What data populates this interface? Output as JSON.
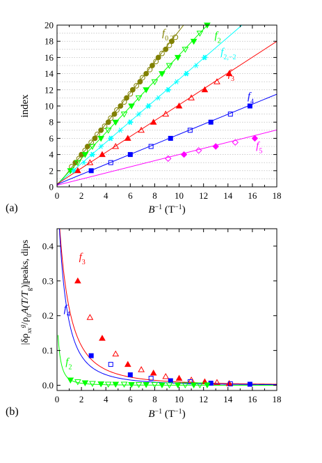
{
  "chart_data": [
    {
      "panel_label": "(a)",
      "type": "scatter",
      "ylabel": "index",
      "xlabel": {
        "main": "B",
        "sup": "−1",
        "unit_open": " (T",
        "unit_sup": "−1",
        "unit_close": ")"
      },
      "xlim": [
        0,
        18
      ],
      "ylim": [
        0,
        20
      ],
      "xticks": [
        0,
        2,
        4,
        6,
        8,
        10,
        12,
        14,
        16,
        18
      ],
      "yticks": [
        0,
        2,
        4,
        6,
        8,
        10,
        12,
        14,
        16,
        18,
        20
      ],
      "grid": "horizontal dotted",
      "series": [
        {
          "name": "f0,2",
          "label_main": "f",
          "label_sub": "0,2",
          "color": "#808000",
          "fit": {
            "slope": 1.92,
            "intercept": 0.1
          },
          "filled": [
            [
              1.5,
              3
            ],
            [
              2.0,
              4
            ],
            [
              2.5,
              5
            ],
            [
              3.1,
              6
            ],
            [
              3.6,
              7
            ],
            [
              4.2,
              8
            ],
            [
              4.7,
              9
            ],
            [
              5.2,
              10
            ],
            [
              5.7,
              11
            ],
            [
              6.2,
              12
            ],
            [
              6.8,
              13
            ],
            [
              7.3,
              14
            ],
            [
              7.8,
              15
            ],
            [
              8.3,
              16
            ],
            [
              8.9,
              17
            ],
            [
              9.4,
              18
            ]
          ],
          "open": [
            [
              1.2,
              2.5
            ],
            [
              1.8,
              3.5
            ],
            [
              2.3,
              4.5
            ],
            [
              2.8,
              5.5
            ],
            [
              3.3,
              6.5
            ],
            [
              3.9,
              7.5
            ],
            [
              4.4,
              8.5
            ],
            [
              4.9,
              9.5
            ],
            [
              5.5,
              10.5
            ],
            [
              6.0,
              11.5
            ],
            [
              6.5,
              12.5
            ],
            [
              7.0,
              13.5
            ],
            [
              7.6,
              14.5
            ],
            [
              8.1,
              15.5
            ],
            [
              8.6,
              16.5
            ],
            [
              9.2,
              17.5
            ],
            [
              9.7,
              18.5
            ]
          ],
          "marker": "circle"
        },
        {
          "name": "f2",
          "label_main": "f",
          "label_sub": "2",
          "color": "#00ff00",
          "fit": {
            "slope": 1.6,
            "intercept": 0.3
          },
          "filled": [
            [
              1.1,
              2
            ],
            [
              2.3,
              4
            ],
            [
              3.6,
              6
            ],
            [
              4.8,
              8
            ],
            [
              6.1,
              10
            ],
            [
              7.3,
              12
            ],
            [
              8.6,
              14
            ],
            [
              9.9,
              16
            ],
            [
              11.2,
              18
            ],
            [
              12.3,
              20
            ]
          ],
          "open": [
            [
              1.7,
              3
            ],
            [
              2.9,
              5
            ],
            [
              4.2,
              7
            ],
            [
              5.5,
              9
            ],
            [
              6.7,
              11
            ],
            [
              8.0,
              13
            ],
            [
              9.2,
              15
            ],
            [
              10.5,
              17
            ],
            [
              11.7,
              19
            ]
          ],
          "marker": "triangle-down"
        },
        {
          "name": "f2,-2",
          "label_main": "f",
          "label_sub": "2,−2",
          "color": "#00ffff",
          "fit": {
            "slope": 1.3,
            "intercept": 0.3
          },
          "filled": [
            [
              1.4,
              2
            ],
            [
              2.9,
              4
            ],
            [
              4.4,
              6
            ],
            [
              6.0,
              8
            ],
            [
              7.5,
              10
            ],
            [
              9.1,
              12
            ],
            [
              10.6,
              14
            ],
            [
              12.1,
              16
            ]
          ],
          "open": [
            [
              2.2,
              3
            ],
            [
              3.6,
              5
            ],
            [
              5.2,
              7
            ],
            [
              6.7,
              9
            ],
            [
              8.3,
              11
            ],
            [
              9.8,
              13
            ],
            [
              11.4,
              15
            ]
          ],
          "marker": "asterisk"
        },
        {
          "name": "f3",
          "label_main": "f",
          "label_sub": "3",
          "color": "#ff0000",
          "fit": {
            "slope": 0.98,
            "intercept": 0.35
          },
          "filled": [
            [
              1.7,
              2
            ],
            [
              3.7,
              4
            ],
            [
              5.8,
              6
            ],
            [
              7.9,
              8
            ],
            [
              10.0,
              10
            ],
            [
              12.1,
              12
            ],
            [
              14.1,
              14
            ]
          ],
          "open": [
            [
              2.7,
              3
            ],
            [
              4.8,
              5
            ],
            [
              6.9,
              7
            ],
            [
              8.9,
              9
            ],
            [
              11.0,
              11
            ],
            [
              13.1,
              13
            ]
          ],
          "marker": "triangle-up"
        },
        {
          "name": "f4",
          "label_main": "f",
          "label_sub": "4",
          "color": "#0000ff",
          "fit": {
            "slope": 0.62,
            "intercept": 0.3
          },
          "filled": [
            [
              2.8,
              2
            ],
            [
              6.0,
              4
            ],
            [
              9.3,
              6
            ],
            [
              12.6,
              8
            ],
            [
              15.8,
              10
            ]
          ],
          "open": [
            [
              4.4,
              3
            ],
            [
              7.7,
              5
            ],
            [
              10.9,
              7
            ],
            [
              14.2,
              9
            ]
          ],
          "marker": "square"
        },
        {
          "name": "f5",
          "label_main": "f",
          "label_sub": "5",
          "color": "#ff00ff",
          "fit": {
            "slope": 0.38,
            "intercept": 0.2
          },
          "filled": [
            [
              10.4,
              4
            ],
            [
              13.0,
              5
            ],
            [
              16.2,
              6
            ]
          ],
          "open": [
            [
              9.1,
              3.5
            ],
            [
              11.6,
              4.5
            ],
            [
              14.6,
              5.5
            ]
          ],
          "marker": "diamond"
        }
      ]
    },
    {
      "panel_label": "(b)",
      "type": "scatter",
      "ylabel_peaks": "peaks, dips",
      "ylabel_formula": {
        "open": "|δρ",
        "sub1": "xx",
        "sup1": "g",
        "mid": "/ρ",
        "sub2": "0",
        "a": "A(T/T",
        "sub3": "g",
        "close": ")|"
      },
      "xlabel": {
        "main": "B",
        "sup": "−1",
        "unit_open": " (T",
        "unit_sup": "−1",
        "unit_close": ")"
      },
      "xlim": [
        0,
        18
      ],
      "ylim": [
        -0.015,
        0.45
      ],
      "xticks": [
        0,
        2,
        4,
        6,
        8,
        10,
        12,
        14,
        16,
        18
      ],
      "yticks": [
        0.0,
        0.1,
        0.2,
        0.3,
        0.4
      ],
      "grid": "none",
      "series": [
        {
          "name": "f3",
          "label_main": "f",
          "label_sub": "3",
          "color": "#ff0000",
          "curve": {
            "a": 0.58,
            "k": 0.55
          },
          "filled": [
            [
              1.7,
              0.3
            ],
            [
              3.7,
              0.135
            ],
            [
              5.8,
              0.06
            ],
            [
              7.9,
              0.035
            ],
            [
              10.0,
              0.02
            ],
            [
              12.1,
              0.01
            ],
            [
              14.1,
              0.005
            ]
          ],
          "open": [
            [
              2.7,
              0.195
            ],
            [
              4.8,
              0.09
            ],
            [
              6.9,
              0.045
            ],
            [
              8.9,
              0.025
            ],
            [
              11.0,
              0.015
            ],
            [
              13.1,
              0.008
            ]
          ],
          "marker": "triangle-up"
        },
        {
          "name": "f4",
          "label_main": "f",
          "label_sub": "4",
          "color": "#0000ff",
          "curve": {
            "a": 0.6,
            "k": 0.72
          },
          "filled": [
            [
              2.8,
              0.085
            ],
            [
              6.0,
              0.03
            ],
            [
              9.3,
              0.013
            ],
            [
              12.6,
              0.006
            ],
            [
              15.8,
              0.003
            ]
          ],
          "open": [
            [
              4.4,
              0.06
            ],
            [
              7.7,
              0.02
            ],
            [
              10.9,
              0.01
            ],
            [
              14.2,
              0.004
            ]
          ],
          "marker": "square"
        },
        {
          "name": "f2",
          "label_main": "f",
          "label_sub": "2",
          "color": "#00ff00",
          "curve": {
            "a": 0.2,
            "k": 2.0
          },
          "filled": [
            [
              1.1,
              0.015
            ],
            [
              2.3,
              0.007
            ],
            [
              3.6,
              0.004
            ],
            [
              4.8,
              0.003
            ],
            [
              6.1,
              0.002
            ],
            [
              7.3,
              0.002
            ],
            [
              8.6,
              0.001
            ],
            [
              9.9,
              0.001
            ],
            [
              11.2,
              0.001
            ],
            [
              12.3,
              0.001
            ]
          ],
          "open": [
            [
              1.7,
              0.01
            ],
            [
              2.9,
              0.005
            ],
            [
              4.2,
              0.003
            ],
            [
              5.5,
              0.003
            ],
            [
              6.7,
              0.002
            ],
            [
              8.0,
              0.002
            ],
            [
              9.2,
              0.001
            ],
            [
              10.5,
              0.001
            ],
            [
              11.7,
              0.001
            ]
          ],
          "marker": "triangle-down"
        }
      ]
    }
  ]
}
